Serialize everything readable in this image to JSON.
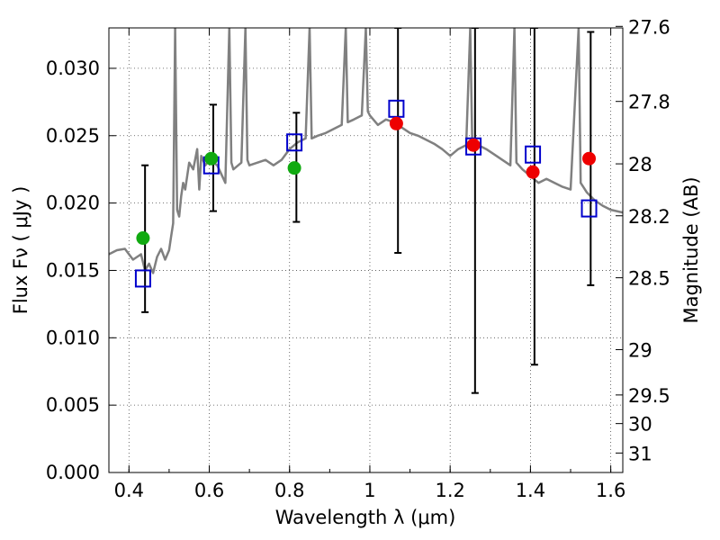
{
  "chart_data": {
    "type": "scatter",
    "xlabel": "Wavelength  λ (μm)",
    "ylabel": "Flux  Fν  ( μJy )",
    "ylabel_right": "Magnitude (AB)",
    "xlim": [
      0.35,
      1.63
    ],
    "ylim": [
      0.0,
      0.033
    ],
    "grid": true,
    "x_ticks": [
      {
        "value": 0.4,
        "label": "0.4"
      },
      {
        "value": 0.6,
        "label": "0.6"
      },
      {
        "value": 0.8,
        "label": "0.8"
      },
      {
        "value": 1.0,
        "label": "1"
      },
      {
        "value": 1.2,
        "label": "1.2"
      },
      {
        "value": 1.4,
        "label": "1.4"
      },
      {
        "value": 1.6,
        "label": "1.6"
      }
    ],
    "y_ticks": [
      {
        "value": 0.0,
        "label": "0.000"
      },
      {
        "value": 0.005,
        "label": "0.005"
      },
      {
        "value": 0.01,
        "label": "0.010"
      },
      {
        "value": 0.015,
        "label": "0.015"
      },
      {
        "value": 0.02,
        "label": "0.020"
      },
      {
        "value": 0.025,
        "label": "0.025"
      },
      {
        "value": 0.03,
        "label": "0.030"
      }
    ],
    "mag_ticks": [
      {
        "mag": 27.6,
        "label": "27.6"
      },
      {
        "mag": 27.8,
        "label": "27.8"
      },
      {
        "mag": 28.0,
        "label": "28"
      },
      {
        "mag": 28.2,
        "label": "28.2"
      },
      {
        "mag": 28.5,
        "label": "28.5"
      },
      {
        "mag": 29.0,
        "label": "29"
      },
      {
        "mag": 29.5,
        "label": "29.5"
      },
      {
        "mag": 30.0,
        "label": "30"
      },
      {
        "mag": 31.0,
        "label": "31"
      }
    ],
    "series": [
      {
        "kind": "spectrum-line",
        "color": "#808080",
        "points": [
          [
            0.35,
            0.0162
          ],
          [
            0.37,
            0.0165
          ],
          [
            0.39,
            0.0166
          ],
          [
            0.41,
            0.0158
          ],
          [
            0.43,
            0.0162
          ],
          [
            0.44,
            0.015
          ],
          [
            0.45,
            0.0155
          ],
          [
            0.46,
            0.0148
          ],
          [
            0.47,
            0.016
          ],
          [
            0.48,
            0.0166
          ],
          [
            0.49,
            0.0158
          ],
          [
            0.5,
            0.0165
          ],
          [
            0.505,
            0.0175
          ],
          [
            0.51,
            0.0185
          ],
          [
            0.515,
            0.033
          ],
          [
            0.52,
            0.0195
          ],
          [
            0.525,
            0.019
          ],
          [
            0.53,
            0.0205
          ],
          [
            0.535,
            0.0215
          ],
          [
            0.54,
            0.021
          ],
          [
            0.55,
            0.023
          ],
          [
            0.56,
            0.0225
          ],
          [
            0.57,
            0.024
          ],
          [
            0.575,
            0.021
          ],
          [
            0.58,
            0.0235
          ],
          [
            0.59,
            0.0228
          ],
          [
            0.6,
            0.0232
          ],
          [
            0.62,
            0.0228
          ],
          [
            0.64,
            0.0215
          ],
          [
            0.65,
            0.033
          ],
          [
            0.655,
            0.023
          ],
          [
            0.66,
            0.0225
          ],
          [
            0.68,
            0.023
          ],
          [
            0.69,
            0.033
          ],
          [
            0.695,
            0.0232
          ],
          [
            0.7,
            0.0228
          ],
          [
            0.72,
            0.023
          ],
          [
            0.74,
            0.0232
          ],
          [
            0.76,
            0.0228
          ],
          [
            0.78,
            0.0232
          ],
          [
            0.8,
            0.024
          ],
          [
            0.82,
            0.0245
          ],
          [
            0.84,
            0.0248
          ],
          [
            0.85,
            0.033
          ],
          [
            0.855,
            0.0248
          ],
          [
            0.87,
            0.025
          ],
          [
            0.89,
            0.0252
          ],
          [
            0.91,
            0.0255
          ],
          [
            0.93,
            0.0258
          ],
          [
            0.94,
            0.033
          ],
          [
            0.945,
            0.026
          ],
          [
            0.96,
            0.0262
          ],
          [
            0.98,
            0.0265
          ],
          [
            0.99,
            0.033
          ],
          [
            0.995,
            0.0268
          ],
          [
            1.0,
            0.0265
          ],
          [
            1.02,
            0.0258
          ],
          [
            1.04,
            0.0262
          ],
          [
            1.06,
            0.026
          ],
          [
            1.08,
            0.0256
          ],
          [
            1.1,
            0.0252
          ],
          [
            1.12,
            0.025
          ],
          [
            1.14,
            0.0247
          ],
          [
            1.16,
            0.0244
          ],
          [
            1.18,
            0.024
          ],
          [
            1.2,
            0.0235
          ],
          [
            1.22,
            0.024
          ],
          [
            1.24,
            0.0243
          ],
          [
            1.25,
            0.033
          ],
          [
            1.255,
            0.0245
          ],
          [
            1.27,
            0.0243
          ],
          [
            1.29,
            0.024
          ],
          [
            1.31,
            0.0236
          ],
          [
            1.33,
            0.0232
          ],
          [
            1.35,
            0.0228
          ],
          [
            1.36,
            0.033
          ],
          [
            1.365,
            0.023
          ],
          [
            1.38,
            0.0225
          ],
          [
            1.4,
            0.022
          ],
          [
            1.42,
            0.0215
          ],
          [
            1.44,
            0.0218
          ],
          [
            1.46,
            0.0215
          ],
          [
            1.48,
            0.0212
          ],
          [
            1.5,
            0.021
          ],
          [
            1.52,
            0.033
          ],
          [
            1.525,
            0.0215
          ],
          [
            1.54,
            0.0208
          ],
          [
            1.56,
            0.0202
          ],
          [
            1.58,
            0.0198
          ],
          [
            1.6,
            0.0195
          ],
          [
            1.63,
            0.0193
          ]
        ]
      },
      {
        "kind": "model-squares",
        "color": "#0000cc",
        "points": [
          [
            0.435,
            0.0144
          ],
          [
            0.605,
            0.0228
          ],
          [
            0.812,
            0.0245
          ],
          [
            1.066,
            0.027
          ],
          [
            1.258,
            0.0242
          ],
          [
            1.406,
            0.0236
          ],
          [
            1.546,
            0.0196
          ]
        ]
      },
      {
        "kind": "green-points",
        "color": "#11aa11",
        "points": [
          [
            0.435,
            0.0174
          ],
          [
            0.605,
            0.0233
          ],
          [
            0.812,
            0.0226
          ]
        ]
      },
      {
        "kind": "red-points",
        "color": "#ee0000",
        "points": [
          [
            1.066,
            0.0259
          ],
          [
            1.258,
            0.0243
          ],
          [
            1.406,
            0.0223
          ],
          [
            1.546,
            0.0233
          ]
        ]
      },
      {
        "kind": "error-bars",
        "color": "#000000",
        "bars": [
          {
            "x": 0.44,
            "low": 0.0119,
            "high": 0.0228
          },
          {
            "x": 0.61,
            "low": 0.0194,
            "high": 0.0273
          },
          {
            "x": 0.817,
            "low": 0.0186,
            "high": 0.0267
          },
          {
            "x": 1.07,
            "low": 0.0163,
            "high": 0.033
          },
          {
            "x": 1.262,
            "low": 0.0059,
            "high": 0.033
          },
          {
            "x": 1.41,
            "low": 0.008,
            "high": 0.033
          },
          {
            "x": 1.55,
            "low": 0.0139,
            "high": 0.0327
          }
        ]
      }
    ]
  }
}
